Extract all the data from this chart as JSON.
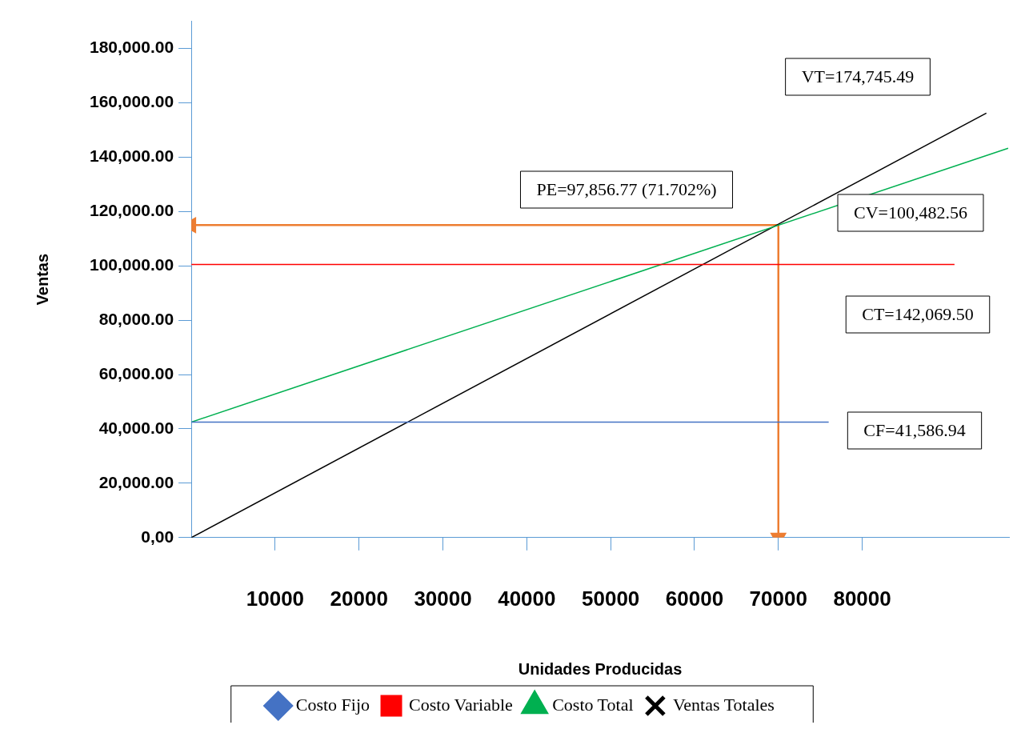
{
  "chart_data": {
    "type": "line",
    "xlabel": "Unidades Producidas",
    "ylabel": "Ventas",
    "xlim": [
      0,
      97500
    ],
    "ylim": [
      0,
      190000
    ],
    "xticks": [
      10000,
      20000,
      30000,
      40000,
      50000,
      60000,
      70000,
      80000
    ],
    "yticks": [
      {
        "value": 0,
        "label": "0,00"
      },
      {
        "value": 20000,
        "label": "20,000.00"
      },
      {
        "value": 40000,
        "label": "40,000.00"
      },
      {
        "value": 60000,
        "label": "60,000.00"
      },
      {
        "value": 80000,
        "label": "80,000.00"
      },
      {
        "value": 100000,
        "label": "100,000.00"
      },
      {
        "value": 120000,
        "label": "120,000.00"
      },
      {
        "value": 140000,
        "label": "140,000.00"
      },
      {
        "value": 160000,
        "label": "160,000.00"
      },
      {
        "value": 180000,
        "label": "180,000.00"
      }
    ],
    "legend": "bottom",
    "series": [
      {
        "name": "Costo Fijo",
        "color": "#4472c4",
        "x": [
          0,
          76000
        ],
        "values": [
          42500,
          42500
        ]
      },
      {
        "name": "Costo Variable",
        "color": "#ff0000",
        "x": [
          0,
          91000
        ],
        "values": [
          100500,
          100500
        ]
      },
      {
        "name": "Costo Total",
        "color": "#00b050",
        "x": [
          0,
          97400
        ],
        "values": [
          42500,
          143300
        ]
      },
      {
        "name": "Ventas Totales",
        "color": "#000000",
        "x": [
          0,
          94800
        ],
        "values": [
          0,
          156200
        ]
      },
      {
        "color": "#ed7d31",
        "x": [
          0,
          70000,
          70000
        ],
        "values": [
          115000,
          115000,
          0
        ]
      }
    ],
    "annotations": [
      "VT=174,745.49",
      "PE=97,856.77 (71.702%)",
      "CV=100,482.56",
      "CT=142,069.50",
      "CF=41,586.94"
    ]
  }
}
